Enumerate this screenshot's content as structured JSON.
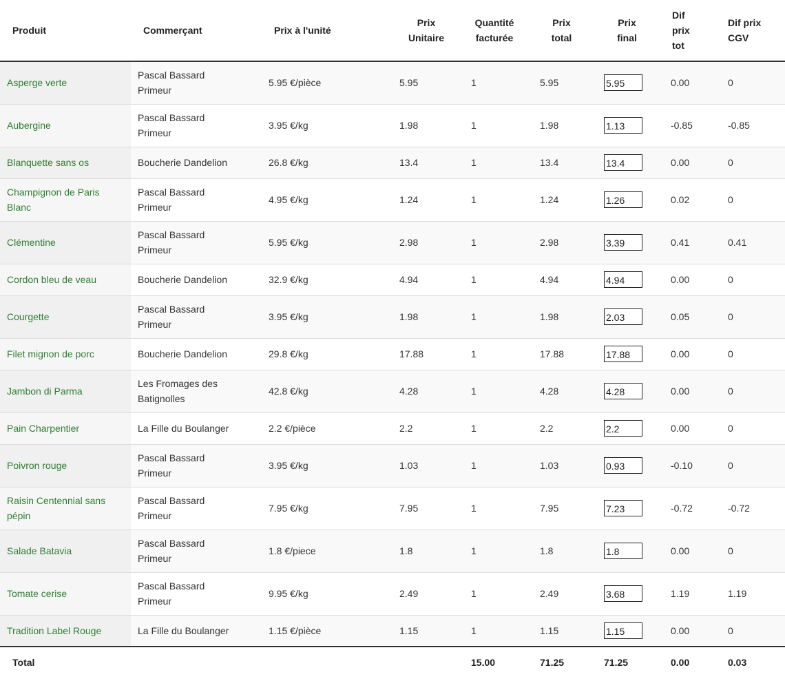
{
  "headers": {
    "produit": "Produit",
    "commercant": "Commerçant",
    "prix_unite": "Prix à l'unité",
    "prix_unitaire_1": "Prix",
    "prix_unitaire_2": "Unitaire",
    "quantite_1": "Quantité",
    "quantite_2": "facturée",
    "prix_total_1": "Prix",
    "prix_total_2": "total",
    "prix_final_1": "Prix",
    "prix_final_2": "final",
    "dif_tot_1": "Dif",
    "dif_tot_2": "prix",
    "dif_tot_3": "tot",
    "dif_cgv_1": "Dif prix",
    "dif_cgv_2": "CGV"
  },
  "rows": [
    {
      "produit": "Asperge verte",
      "commercant": [
        "Pascal Bassard",
        "Primeur"
      ],
      "prix_unite": "5.95 €/pièce",
      "prix_unitaire": "5.95",
      "quantite": "1",
      "prix_total": "5.95",
      "prix_final": "5.95",
      "dif_tot": "0.00",
      "dif_cgv": "0"
    },
    {
      "produit": "Aubergine",
      "commercant": [
        "Pascal Bassard",
        "Primeur"
      ],
      "prix_unite": "3.95 €/kg",
      "prix_unitaire": "1.98",
      "quantite": "1",
      "prix_total": "1.98",
      "prix_final": "1.13",
      "dif_tot": "-0.85",
      "dif_cgv": "-0.85"
    },
    {
      "produit": "Blanquette sans os",
      "commercant": [
        "Boucherie Dandelion"
      ],
      "prix_unite": "26.8 €/kg",
      "prix_unitaire": "13.4",
      "quantite": "1",
      "prix_total": "13.4",
      "prix_final": "13.4",
      "dif_tot": "0.00",
      "dif_cgv": "0"
    },
    {
      "produit": "Champignon de Paris Blanc",
      "commercant": [
        "Pascal Bassard",
        "Primeur"
      ],
      "prix_unite": "4.95 €/kg",
      "prix_unitaire": "1.24",
      "quantite": "1",
      "prix_total": "1.24",
      "prix_final": "1.26",
      "dif_tot": "0.02",
      "dif_cgv": "0"
    },
    {
      "produit": "Clémentine",
      "commercant": [
        "Pascal Bassard",
        "Primeur"
      ],
      "prix_unite": "5.95 €/kg",
      "prix_unitaire": "2.98",
      "quantite": "1",
      "prix_total": "2.98",
      "prix_final": "3.39",
      "dif_tot": "0.41",
      "dif_cgv": "0.41"
    },
    {
      "produit": "Cordon bleu de veau",
      "commercant": [
        "Boucherie Dandelion"
      ],
      "prix_unite": "32.9 €/kg",
      "prix_unitaire": "4.94",
      "quantite": "1",
      "prix_total": "4.94",
      "prix_final": "4.94",
      "dif_tot": "0.00",
      "dif_cgv": "0"
    },
    {
      "produit": "Courgette",
      "commercant": [
        "Pascal Bassard",
        "Primeur"
      ],
      "prix_unite": "3.95 €/kg",
      "prix_unitaire": "1.98",
      "quantite": "1",
      "prix_total": "1.98",
      "prix_final": "2.03",
      "dif_tot": "0.05",
      "dif_cgv": "0"
    },
    {
      "produit": "Filet mignon de porc",
      "commercant": [
        "Boucherie Dandelion"
      ],
      "prix_unite": "29.8 €/kg",
      "prix_unitaire": "17.88",
      "quantite": "1",
      "prix_total": "17.88",
      "prix_final": "17.88",
      "dif_tot": "0.00",
      "dif_cgv": "0"
    },
    {
      "produit": "Jambon di Parma",
      "commercant": [
        "Les Fromages des",
        "Batignolles"
      ],
      "prix_unite": "42.8 €/kg",
      "prix_unitaire": "4.28",
      "quantite": "1",
      "prix_total": "4.28",
      "prix_final": "4.28",
      "dif_tot": "0.00",
      "dif_cgv": "0"
    },
    {
      "produit": "Pain Charpentier",
      "commercant": [
        "La Fille du Boulanger"
      ],
      "prix_unite": "2.2 €/pièce",
      "prix_unitaire": "2.2",
      "quantite": "1",
      "prix_total": "2.2",
      "prix_final": "2.2",
      "dif_tot": "0.00",
      "dif_cgv": "0"
    },
    {
      "produit": "Poivron rouge",
      "commercant": [
        "Pascal Bassard",
        "Primeur"
      ],
      "prix_unite": "3.95 €/kg",
      "prix_unitaire": "1.03",
      "quantite": "1",
      "prix_total": "1.03",
      "prix_final": "0.93",
      "dif_tot": "-0.10",
      "dif_cgv": "0"
    },
    {
      "produit": "Raisin Centennial sans pépin",
      "commercant": [
        "Pascal Bassard",
        "Primeur"
      ],
      "prix_unite": "7.95 €/kg",
      "prix_unitaire": "7.95",
      "quantite": "1",
      "prix_total": "7.95",
      "prix_final": "7.23",
      "dif_tot": "-0.72",
      "dif_cgv": "-0.72"
    },
    {
      "produit": "Salade Batavia",
      "commercant": [
        "Pascal Bassard",
        "Primeur"
      ],
      "prix_unite": "1.8 €/piece",
      "prix_unitaire": "1.8",
      "quantite": "1",
      "prix_total": "1.8",
      "prix_final": "1.8",
      "dif_tot": "0.00",
      "dif_cgv": "0"
    },
    {
      "produit": "Tomate cerise",
      "commercant": [
        "Pascal Bassard",
        "Primeur"
      ],
      "prix_unite": "9.95 €/kg",
      "prix_unitaire": "2.49",
      "quantite": "1",
      "prix_total": "2.49",
      "prix_final": "3.68",
      "dif_tot": "1.19",
      "dif_cgv": "1.19"
    },
    {
      "produit": "Tradition Label Rouge",
      "commercant": [
        "La Fille du Boulanger"
      ],
      "prix_unite": "1.15 €/pièce",
      "prix_unitaire": "1.15",
      "quantite": "1",
      "prix_total": "1.15",
      "prix_final": "1.15",
      "dif_tot": "0.00",
      "dif_cgv": "0"
    }
  ],
  "totals": {
    "label": "Total",
    "quantite": "15.00",
    "prix_total": "71.25",
    "prix_final": "71.25",
    "dif_tot": "0.00",
    "dif_cgv": "0.03"
  },
  "colors": {
    "product_text": "#2e7d32",
    "row_stripe": "#f9f9f9",
    "border": "#dddddd"
  }
}
